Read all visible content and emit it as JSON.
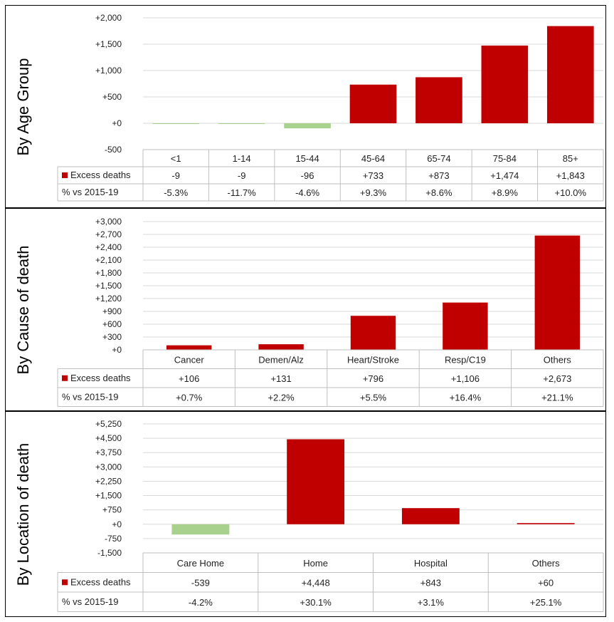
{
  "row_labels": {
    "excess": "Excess deaths",
    "pct": "% vs 2015-19"
  },
  "colors": {
    "positive": "#c00000",
    "negative": "#a9d18e"
  },
  "chart_data": [
    {
      "type": "bar",
      "title": "By Age Group",
      "categories": [
        "<1",
        "1-14",
        "15-44",
        "45-64",
        "65-74",
        "75-84",
        "85+"
      ],
      "values": [
        -9,
        -9,
        -96,
        733,
        873,
        1474,
        1843
      ],
      "value_labels": [
        "-9",
        "-9",
        "-96",
        "+733",
        "+873",
        "+1,474",
        "+1,843"
      ],
      "pct_labels": [
        "-5.3%",
        "-11.7%",
        "-4.6%",
        "+9.3%",
        "+8.6%",
        "+8.9%",
        "+10.0%"
      ],
      "yticks": [
        -500,
        0,
        500,
        1000,
        1500,
        2000
      ],
      "ytick_labels": [
        "-500",
        "+0",
        "+500",
        "+1,000",
        "+1,500",
        "+2,000"
      ],
      "ylim": [
        -500,
        2000
      ]
    },
    {
      "type": "bar",
      "title": "By Cause of death",
      "categories": [
        "Cancer",
        "Demen/Alz",
        "Heart/Stroke",
        "Resp/C19",
        "Others"
      ],
      "values": [
        106,
        131,
        796,
        1106,
        2673
      ],
      "value_labels": [
        "+106",
        "+131",
        "+796",
        "+1,106",
        "+2,673"
      ],
      "pct_labels": [
        "+0.7%",
        "+2.2%",
        "+5.5%",
        "+16.4%",
        "+21.1%"
      ],
      "yticks": [
        0,
        300,
        600,
        900,
        1200,
        1500,
        1800,
        2100,
        2400,
        2700,
        3000
      ],
      "ytick_labels": [
        "+0",
        "+300",
        "+600",
        "+900",
        "+1,200",
        "+1,500",
        "+1,800",
        "+2,100",
        "+2,400",
        "+2,700",
        "+3,000"
      ],
      "ylim": [
        0,
        3000
      ]
    },
    {
      "type": "bar",
      "title": "By Location of death",
      "categories": [
        "Care Home",
        "Home",
        "Hospital",
        "Others"
      ],
      "values": [
        -539,
        4448,
        843,
        60
      ],
      "value_labels": [
        "-539",
        "+4,448",
        "+843",
        "+60"
      ],
      "pct_labels": [
        "-4.2%",
        "+30.1%",
        "+3.1%",
        "+25.1%"
      ],
      "yticks": [
        -1500,
        -750,
        0,
        750,
        1500,
        2250,
        3000,
        3750,
        4500,
        5250
      ],
      "ytick_labels": [
        "-1,500",
        "-750",
        "+0",
        "+750",
        "+1,500",
        "+2,250",
        "+3,000",
        "+3,750",
        "+4,500",
        "+5,250"
      ],
      "ylim": [
        -1500,
        5250
      ]
    }
  ]
}
